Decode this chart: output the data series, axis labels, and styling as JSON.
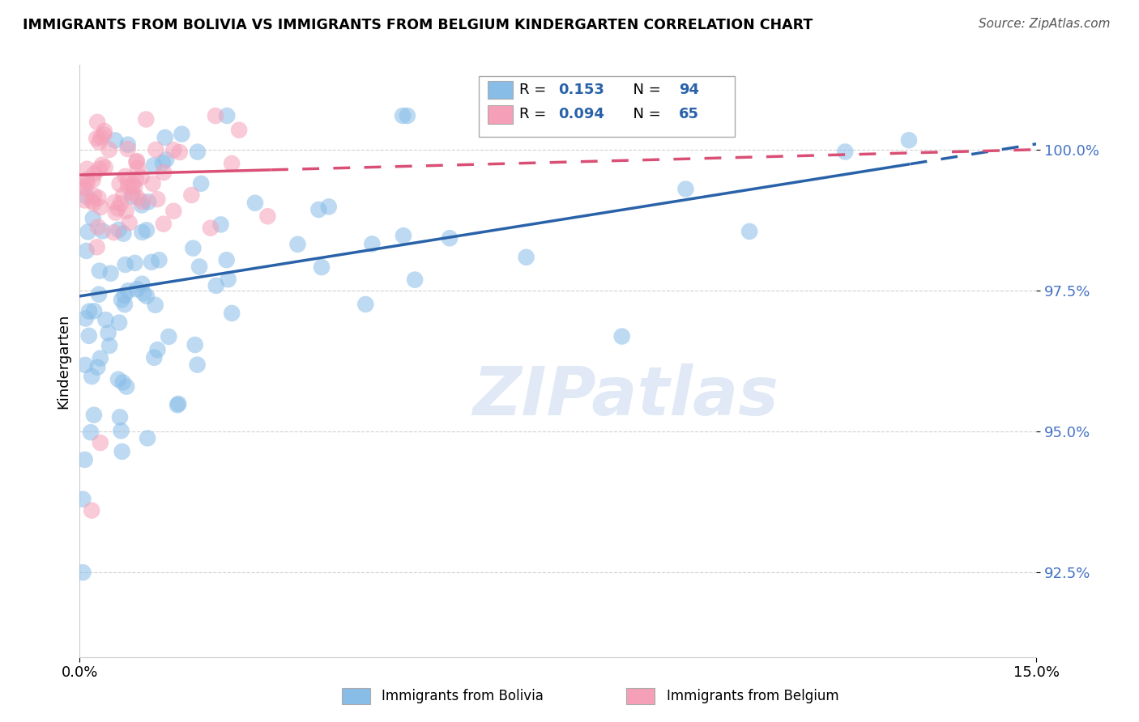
{
  "title": "IMMIGRANTS FROM BOLIVIA VS IMMIGRANTS FROM BELGIUM KINDERGARTEN CORRELATION CHART",
  "source": "Source: ZipAtlas.com",
  "ylabel": "Kindergarten",
  "yticks": [
    92.5,
    95.0,
    97.5,
    100.0
  ],
  "ytick_labels": [
    "92.5%",
    "95.0%",
    "97.5%",
    "100.0%"
  ],
  "xlim": [
    0.0,
    15.0
  ],
  "ylim": [
    91.0,
    101.5
  ],
  "bolivia_R": 0.153,
  "bolivia_N": 94,
  "belgium_R": 0.094,
  "belgium_N": 65,
  "bolivia_color": "#88BDE8",
  "belgium_color": "#F5A0B8",
  "bolivia_line_color": "#2962A8",
  "belgium_line_color": "#D94F75",
  "legend_label_bolivia": "Immigrants from Bolivia",
  "legend_label_belgium": "Immigrants from Belgium",
  "watermark": "ZIPatlas",
  "tick_color": "#4472C4",
  "grid_color": "#CCCCCC",
  "bolivia_intercept": 97.4,
  "bolivia_slope": 0.18,
  "belgium_intercept": 99.55,
  "belgium_slope": 0.03,
  "bolivia_max_x": 13.0,
  "belgium_max_x": 3.0,
  "seed": 77
}
